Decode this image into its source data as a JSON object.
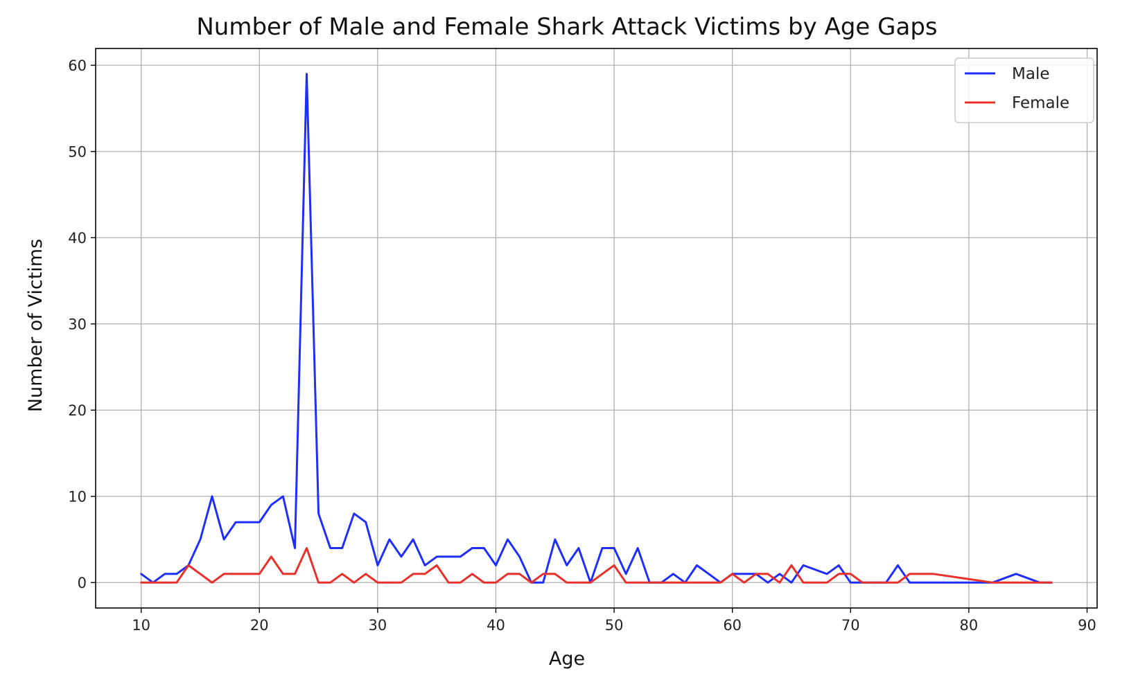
{
  "chart_data": {
    "type": "line",
    "title": "Number of Male and Female Shark Attack Victims by Age Gaps",
    "xlabel": "Age",
    "ylabel": "Number of Victims",
    "xlim": [
      6.15,
      90.85
    ],
    "ylim": [
      -2.95,
      61.95
    ],
    "xticks": [
      10,
      20,
      30,
      40,
      50,
      60,
      70,
      80,
      90
    ],
    "yticks": [
      0,
      10,
      20,
      30,
      40,
      50,
      60
    ],
    "grid": true,
    "legend_position": "top-right",
    "series": [
      {
        "name": "Male",
        "color": "#1f2eff",
        "points": [
          [
            10,
            1
          ],
          [
            11,
            0
          ],
          [
            12,
            1
          ],
          [
            13,
            1
          ],
          [
            14,
            2
          ],
          [
            15,
            5
          ],
          [
            16,
            10
          ],
          [
            17,
            5
          ],
          [
            18,
            7
          ],
          [
            19,
            7
          ],
          [
            20,
            7
          ],
          [
            21,
            9
          ],
          [
            22,
            10
          ],
          [
            23,
            4
          ],
          [
            24,
            59
          ],
          [
            25,
            8
          ],
          [
            26,
            4
          ],
          [
            27,
            4
          ],
          [
            28,
            8
          ],
          [
            29,
            7
          ],
          [
            30,
            2
          ],
          [
            31,
            5
          ],
          [
            32,
            3
          ],
          [
            33,
            5
          ],
          [
            34,
            2
          ],
          [
            35,
            3
          ],
          [
            36,
            3
          ],
          [
            37,
            3
          ],
          [
            38,
            4
          ],
          [
            39,
            4
          ],
          [
            40,
            2
          ],
          [
            41,
            5
          ],
          [
            42,
            3
          ],
          [
            43,
            0
          ],
          [
            44,
            0
          ],
          [
            45,
            5
          ],
          [
            46,
            2
          ],
          [
            47,
            4
          ],
          [
            48,
            0
          ],
          [
            49,
            4
          ],
          [
            50,
            4
          ],
          [
            51,
            1
          ],
          [
            52,
            4
          ],
          [
            53,
            0
          ],
          [
            54,
            0
          ],
          [
            55,
            1
          ],
          [
            56,
            0
          ],
          [
            57,
            2
          ],
          [
            58,
            1
          ],
          [
            59,
            0
          ],
          [
            60,
            1
          ],
          [
            61,
            1
          ],
          [
            62,
            1
          ],
          [
            63,
            0
          ],
          [
            64,
            1
          ],
          [
            65,
            0
          ],
          [
            66,
            2
          ],
          [
            68,
            1
          ],
          [
            69,
            2
          ],
          [
            70,
            0
          ],
          [
            71,
            0
          ],
          [
            72,
            0
          ],
          [
            73,
            0
          ],
          [
            74,
            2
          ],
          [
            75,
            0
          ],
          [
            77,
            0
          ],
          [
            82,
            0
          ],
          [
            84,
            1
          ],
          [
            86,
            0
          ],
          [
            87,
            0
          ]
        ]
      },
      {
        "name": "Female",
        "color": "#e8302a",
        "points": [
          [
            10,
            0
          ],
          [
            11,
            0
          ],
          [
            12,
            0
          ],
          [
            13,
            0
          ],
          [
            14,
            2
          ],
          [
            15,
            1
          ],
          [
            16,
            0
          ],
          [
            17,
            1
          ],
          [
            18,
            1
          ],
          [
            19,
            1
          ],
          [
            20,
            1
          ],
          [
            21,
            3
          ],
          [
            22,
            1
          ],
          [
            23,
            1
          ],
          [
            24,
            4
          ],
          [
            25,
            0
          ],
          [
            26,
            0
          ],
          [
            27,
            1
          ],
          [
            28,
            0
          ],
          [
            29,
            1
          ],
          [
            30,
            0
          ],
          [
            31,
            0
          ],
          [
            32,
            0
          ],
          [
            33,
            1
          ],
          [
            34,
            1
          ],
          [
            35,
            2
          ],
          [
            36,
            0
          ],
          [
            37,
            0
          ],
          [
            38,
            1
          ],
          [
            39,
            0
          ],
          [
            40,
            0
          ],
          [
            41,
            1
          ],
          [
            42,
            1
          ],
          [
            43,
            0
          ],
          [
            44,
            1
          ],
          [
            45,
            1
          ],
          [
            46,
            0
          ],
          [
            47,
            0
          ],
          [
            48,
            0
          ],
          [
            49,
            1
          ],
          [
            50,
            2
          ],
          [
            51,
            0
          ],
          [
            52,
            0
          ],
          [
            53,
            0
          ],
          [
            54,
            0
          ],
          [
            55,
            0
          ],
          [
            56,
            0
          ],
          [
            57,
            0
          ],
          [
            58,
            0
          ],
          [
            59,
            0
          ],
          [
            60,
            1
          ],
          [
            61,
            0
          ],
          [
            62,
            1
          ],
          [
            63,
            1
          ],
          [
            64,
            0
          ],
          [
            65,
            2
          ],
          [
            66,
            0
          ],
          [
            68,
            0
          ],
          [
            69,
            1
          ],
          [
            70,
            1
          ],
          [
            71,
            0
          ],
          [
            72,
            0
          ],
          [
            73,
            0
          ],
          [
            74,
            0
          ],
          [
            75,
            1
          ],
          [
            77,
            1
          ],
          [
            82,
            0
          ],
          [
            84,
            0
          ],
          [
            86,
            0
          ],
          [
            87,
            0
          ]
        ]
      }
    ]
  }
}
